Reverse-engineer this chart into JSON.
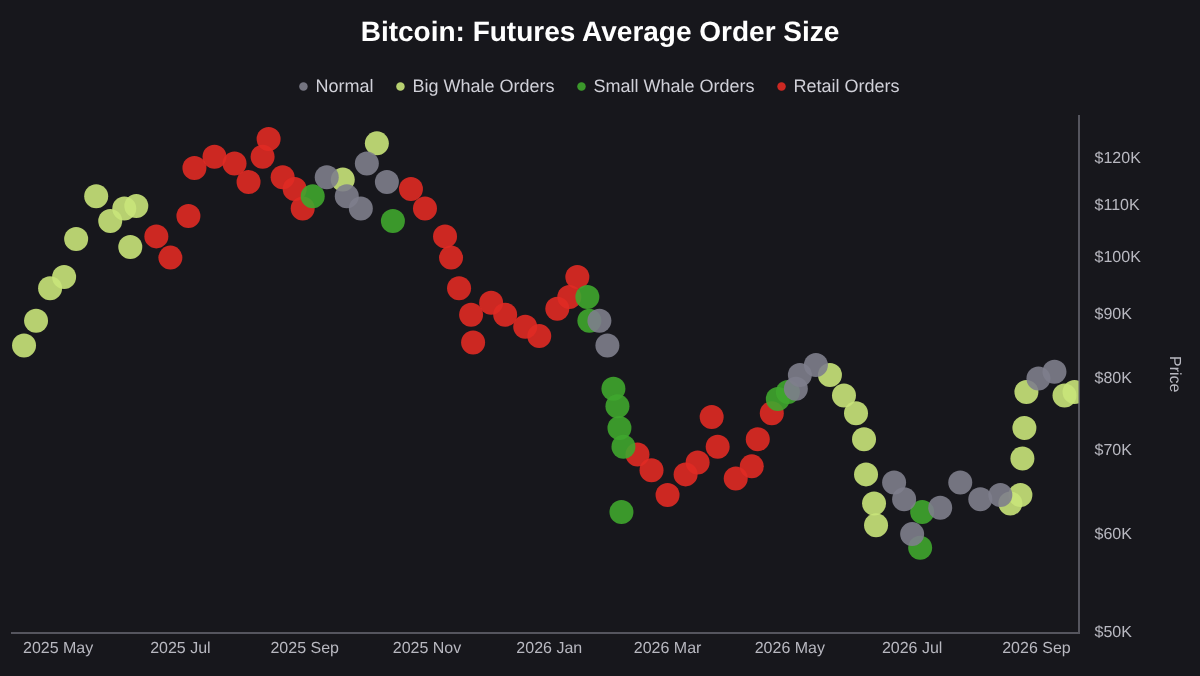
{
  "chart_data": {
    "type": "scatter",
    "title": "Bitcoin: Futures Average Order Size",
    "ylabel": "Price",
    "log": "y",
    "grid": false,
    "legend": "top",
    "marker": "circle",
    "xlim": [
      "2025-04-08",
      "2026-09-22"
    ],
    "xticks": [
      {
        "value": "2025-05-01",
        "label": "2025 May"
      },
      {
        "value": "2025-07-01",
        "label": "2025 Jul"
      },
      {
        "value": "2025-09-01",
        "label": "2025 Sep"
      },
      {
        "value": "2025-11-01",
        "label": "2025 Nov"
      },
      {
        "value": "2026-01-01",
        "label": "2026 Jan"
      },
      {
        "value": "2026-03-01",
        "label": "2026 Mar"
      },
      {
        "value": "2026-05-01",
        "label": "2026 May"
      },
      {
        "value": "2026-07-01",
        "label": "2026 Jul"
      },
      {
        "value": "2026-09-01",
        "label": "2026 Sep"
      }
    ],
    "ylim": [
      50000,
      130000
    ],
    "yticks": [
      {
        "value": 50000,
        "label": "$50K"
      },
      {
        "value": 60000,
        "label": "$60K"
      },
      {
        "value": 70000,
        "label": "$70K"
      },
      {
        "value": 80000,
        "label": "$80K"
      },
      {
        "value": 90000,
        "label": "$90K"
      },
      {
        "value": 100000,
        "label": "$100K"
      },
      {
        "value": 110000,
        "label": "$110K"
      },
      {
        "value": 120000,
        "label": "$120K"
      }
    ],
    "series": [
      {
        "name": "Normal",
        "color": "#7e7e8c",
        "x": [
          "2025-09-12",
          "2025-09-22",
          "2025-09-29",
          "2025-10-02",
          "2025-10-12",
          "2026-01-26",
          "2026-01-30",
          "2026-05-04",
          "2026-05-06",
          "2026-05-14",
          "2026-06-22",
          "2026-06-27",
          "2026-07-01",
          "2026-07-15",
          "2026-07-25",
          "2026-08-04",
          "2026-08-14",
          "2026-09-02",
          "2026-09-10"
        ],
        "values": [
          116000,
          112000,
          109500,
          119000,
          115000,
          89000,
          85000,
          78500,
          80500,
          82000,
          66000,
          64000,
          60000,
          63000,
          66000,
          64000,
          64500,
          80000,
          81000
        ]
      },
      {
        "name": "Big Whale Orders",
        "color": "#c9e47a",
        "x": [
          "2025-04-14",
          "2025-04-20",
          "2025-04-27",
          "2025-05-04",
          "2025-05-10",
          "2025-05-20",
          "2025-05-27",
          "2025-06-03",
          "2025-06-09",
          "2025-06-06",
          "2025-09-20",
          "2025-10-07",
          "2026-05-21",
          "2026-05-28",
          "2026-06-03",
          "2026-06-07",
          "2026-06-08",
          "2026-06-12",
          "2026-06-13",
          "2026-08-19",
          "2026-08-24",
          "2026-08-25",
          "2026-08-26",
          "2026-08-27",
          "2026-09-15",
          "2026-09-20"
        ],
        "values": [
          85000,
          89000,
          94500,
          96500,
          103500,
          112000,
          107000,
          109500,
          110000,
          102000,
          115500,
          123500,
          80500,
          77500,
          75000,
          71500,
          67000,
          63500,
          61000,
          63500,
          64500,
          69000,
          73000,
          78000,
          77500,
          78000
        ]
      },
      {
        "name": "Small Whale Orders",
        "color": "#3fa62e",
        "x": [
          "2025-09-05",
          "2025-10-15",
          "2026-01-20",
          "2026-01-21",
          "2026-02-02",
          "2026-02-04",
          "2026-02-05",
          "2026-02-07",
          "2026-02-06",
          "2026-04-25",
          "2026-04-30",
          "2026-07-06",
          "2026-07-05"
        ],
        "values": [
          112000,
          107000,
          93000,
          89000,
          78500,
          76000,
          73000,
          70500,
          62500,
          77000,
          78000,
          62500,
          58500
        ]
      },
      {
        "name": "Retail Orders",
        "color": "#e02a24",
        "x": [
          "2025-06-19",
          "2025-06-26",
          "2025-07-05",
          "2025-07-08",
          "2025-07-18",
          "2025-07-28",
          "2025-08-04",
          "2025-08-11",
          "2025-08-14",
          "2025-08-21",
          "2025-08-27",
          "2025-08-31",
          "2025-10-24",
          "2025-10-31",
          "2025-11-10",
          "2025-11-13",
          "2025-11-17",
          "2025-11-23",
          "2025-11-24",
          "2025-12-03",
          "2025-12-10",
          "2025-12-20",
          "2025-12-27",
          "2026-01-05",
          "2026-01-11",
          "2026-01-15",
          "2026-02-14",
          "2026-02-21",
          "2026-03-01",
          "2026-03-10",
          "2026-03-16",
          "2026-03-23",
          "2026-03-26",
          "2026-04-04",
          "2026-04-12",
          "2026-04-15",
          "2026-04-22"
        ],
        "values": [
          104000,
          100000,
          108000,
          118000,
          120500,
          119000,
          115000,
          120500,
          124500,
          116000,
          113500,
          109500,
          113500,
          109500,
          104000,
          100000,
          94500,
          90000,
          85500,
          92000,
          90000,
          88000,
          86500,
          91000,
          93000,
          96500,
          69500,
          67500,
          64500,
          67000,
          68500,
          74500,
          70500,
          66500,
          68000,
          71500,
          75000
        ]
      }
    ]
  }
}
